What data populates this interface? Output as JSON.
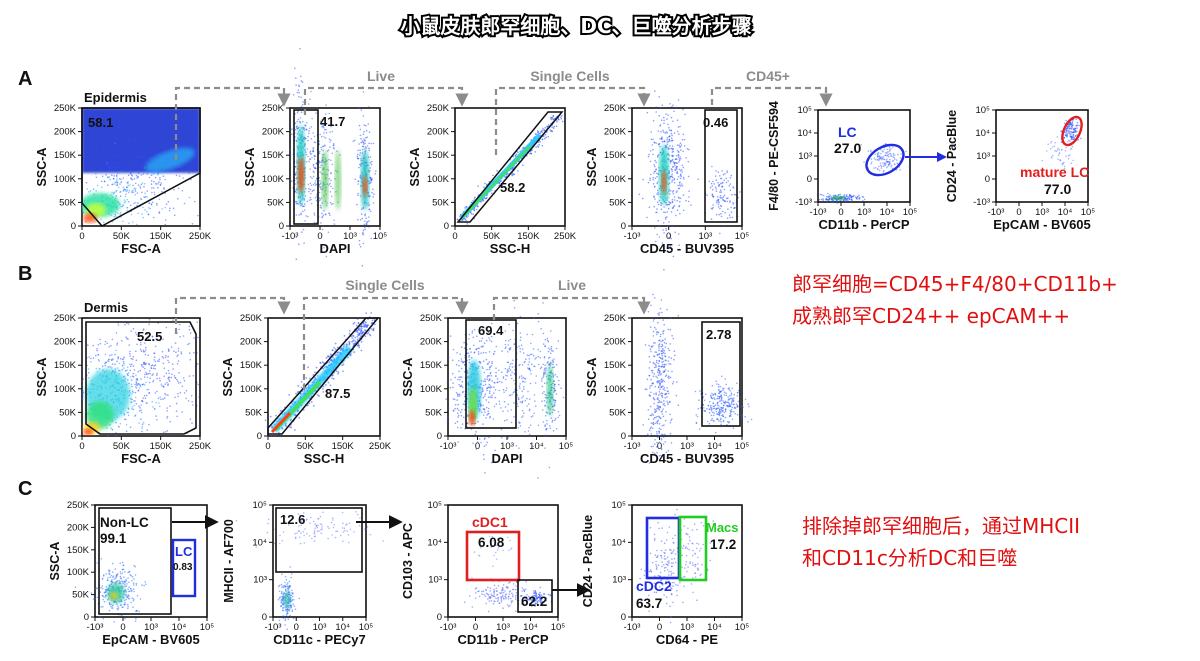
{
  "title": "小鼠皮肤郎罕细胞、DC、巨噬分析步骤",
  "colors": {
    "blue": "#1f2ee0",
    "red": "#e02020",
    "green": "#22cc22",
    "arrow": "#8c8c8c",
    "note": "#e01010"
  },
  "notes_ab": [
    "郎罕细胞=CD45+F4/80+CD11b+",
    "成熟郎罕CD24++ epCAM++"
  ],
  "notes_c": [
    "排除掉郎罕细胞后，通过MHCII",
    "和CD11c分析DC和巨噬"
  ],
  "chart_data": [
    {
      "panel": "A",
      "flow_labels": [
        "Live",
        "Single Cells",
        "CD45+"
      ],
      "plots": [
        {
          "type": "scatter",
          "title": "Epidermis",
          "xlabel": "FSC-A",
          "ylabel": "SSC-A",
          "xticks": [
            "0",
            "50K",
            "150K",
            "250K"
          ],
          "yticks": [
            "0",
            "50K",
            "100K",
            "150K",
            "200K",
            "250K"
          ],
          "gates": [
            {
              "label": "58.1"
            }
          ]
        },
        {
          "type": "scatter",
          "xlabel": "DAPI",
          "ylabel": "SSC-A",
          "xticks": [
            "-10³",
            "0",
            "10³",
            "10⁵"
          ],
          "yticks": [
            "0",
            "50K",
            "100K",
            "150K",
            "200K",
            "250K"
          ],
          "gates": [
            {
              "label": "41.7"
            }
          ]
        },
        {
          "type": "scatter",
          "xlabel": "SSC-H",
          "ylabel": "SSC-A",
          "xticks": [
            "0",
            "50K",
            "150K",
            "250K"
          ],
          "yticks": [
            "0",
            "50K",
            "100K",
            "150K",
            "200K",
            "250K"
          ],
          "gates": [
            {
              "label": "58.2"
            }
          ]
        },
        {
          "type": "scatter",
          "xlabel": "CD45 - BUV395",
          "ylabel": "SSC-A",
          "xticks": [
            "-10³",
            "0",
            "10³",
            "10⁵"
          ],
          "yticks": [
            "0",
            "50K",
            "100K",
            "150K",
            "200K",
            "250K"
          ],
          "gates": [
            {
              "label": "0.46"
            }
          ]
        },
        {
          "type": "scatter",
          "xlabel": "CD11b - PerCP",
          "ylabel": "F4/80 - PE-CSF594",
          "xticks": [
            "-10³",
            "0",
            "10³",
            "10⁴",
            "10⁵"
          ],
          "yticks": [
            "-10³",
            "0",
            "10³",
            "10⁴",
            "10⁵"
          ],
          "gates": [
            {
              "name": "LC",
              "label": "27.0"
            }
          ]
        },
        {
          "type": "scatter",
          "xlabel": "EpCAM - BV605",
          "ylabel": "CD24 - PacBlue",
          "xticks": [
            "-10³",
            "0",
            "10³",
            "10⁴",
            "10⁵"
          ],
          "yticks": [
            "-10³",
            "0",
            "10³",
            "10⁴",
            "10⁵"
          ],
          "gates": [
            {
              "name": "mature LC",
              "label": "77.0"
            }
          ]
        }
      ]
    },
    {
      "panel": "B",
      "flow_labels": [
        "Single Cells",
        "Live"
      ],
      "plots": [
        {
          "type": "scatter",
          "title": "Dermis",
          "xlabel": "FSC-A",
          "ylabel": "SSC-A",
          "xticks": [
            "0",
            "50K",
            "150K",
            "250K"
          ],
          "yticks": [
            "0",
            "50K",
            "100K",
            "150K",
            "200K",
            "250K"
          ],
          "gates": [
            {
              "label": "52.5"
            }
          ]
        },
        {
          "type": "scatter",
          "xlabel": "SSC-H",
          "ylabel": "SSC-A",
          "xticks": [
            "0",
            "50K",
            "150K",
            "250K"
          ],
          "yticks": [
            "0",
            "50K",
            "100K",
            "150K",
            "200K",
            "250K"
          ],
          "gates": [
            {
              "label": "87.5"
            }
          ]
        },
        {
          "type": "scatter",
          "xlabel": "DAPI",
          "ylabel": "SSC-A",
          "xticks": [
            "-10³",
            "0",
            "10³",
            "10⁴",
            "10⁵"
          ],
          "yticks": [
            "0",
            "50K",
            "100K",
            "150K",
            "200K",
            "250K"
          ],
          "gates": [
            {
              "label": "69.4"
            }
          ]
        },
        {
          "type": "scatter",
          "xlabel": "CD45 - BUV395",
          "ylabel": "SSC-A",
          "xticks": [
            "-10³",
            "0",
            "10³",
            "10⁴",
            "10⁵"
          ],
          "yticks": [
            "0",
            "50K",
            "100K",
            "150K",
            "200K",
            "250K"
          ],
          "gates": [
            {
              "label": "2.78"
            }
          ]
        }
      ]
    },
    {
      "panel": "C",
      "plots": [
        {
          "type": "scatter",
          "xlabel": "EpCAM - BV605",
          "ylabel": "SSC-A",
          "xticks": [
            "-10³",
            "0",
            "10³",
            "10⁴",
            "10⁵"
          ],
          "yticks": [
            "0",
            "50K",
            "100K",
            "150K",
            "200K",
            "250K"
          ],
          "gates": [
            {
              "name": "Non-LC",
              "label": "99.1"
            },
            {
              "name": "LC",
              "label": "0.83"
            }
          ]
        },
        {
          "type": "scatter",
          "xlabel": "CD11c - PECy7",
          "ylabel": "MHCII - AF700",
          "xticks": [
            "-10³",
            "0",
            "10³",
            "10⁴",
            "10⁵"
          ],
          "yticks": [
            "0",
            "10³",
            "10⁴",
            "10⁵"
          ],
          "gates": [
            {
              "label": "12.6"
            }
          ]
        },
        {
          "type": "scatter",
          "xlabel": "CD11b - PerCP",
          "ylabel": "CD103 - APC",
          "xticks": [
            "-10³",
            "0",
            "10³",
            "10⁴",
            "10⁵"
          ],
          "yticks": [
            "0",
            "10³",
            "10⁴",
            "10⁵"
          ],
          "gates": [
            {
              "name": "cDC1",
              "label": "6.08"
            },
            {
              "label": "62.2"
            }
          ]
        },
        {
          "type": "scatter",
          "xlabel": "CD64 - PE",
          "ylabel": "CD24 - PacBlue",
          "xticks": [
            "-10³",
            "0",
            "10³",
            "10⁴",
            "10⁵"
          ],
          "yticks": [
            "0",
            "10³",
            "10⁴",
            "10⁵"
          ],
          "gates": [
            {
              "name": "Macs",
              "label": "17.2"
            },
            {
              "name": "cDC2",
              "label": "63.7"
            }
          ]
        }
      ]
    }
  ]
}
